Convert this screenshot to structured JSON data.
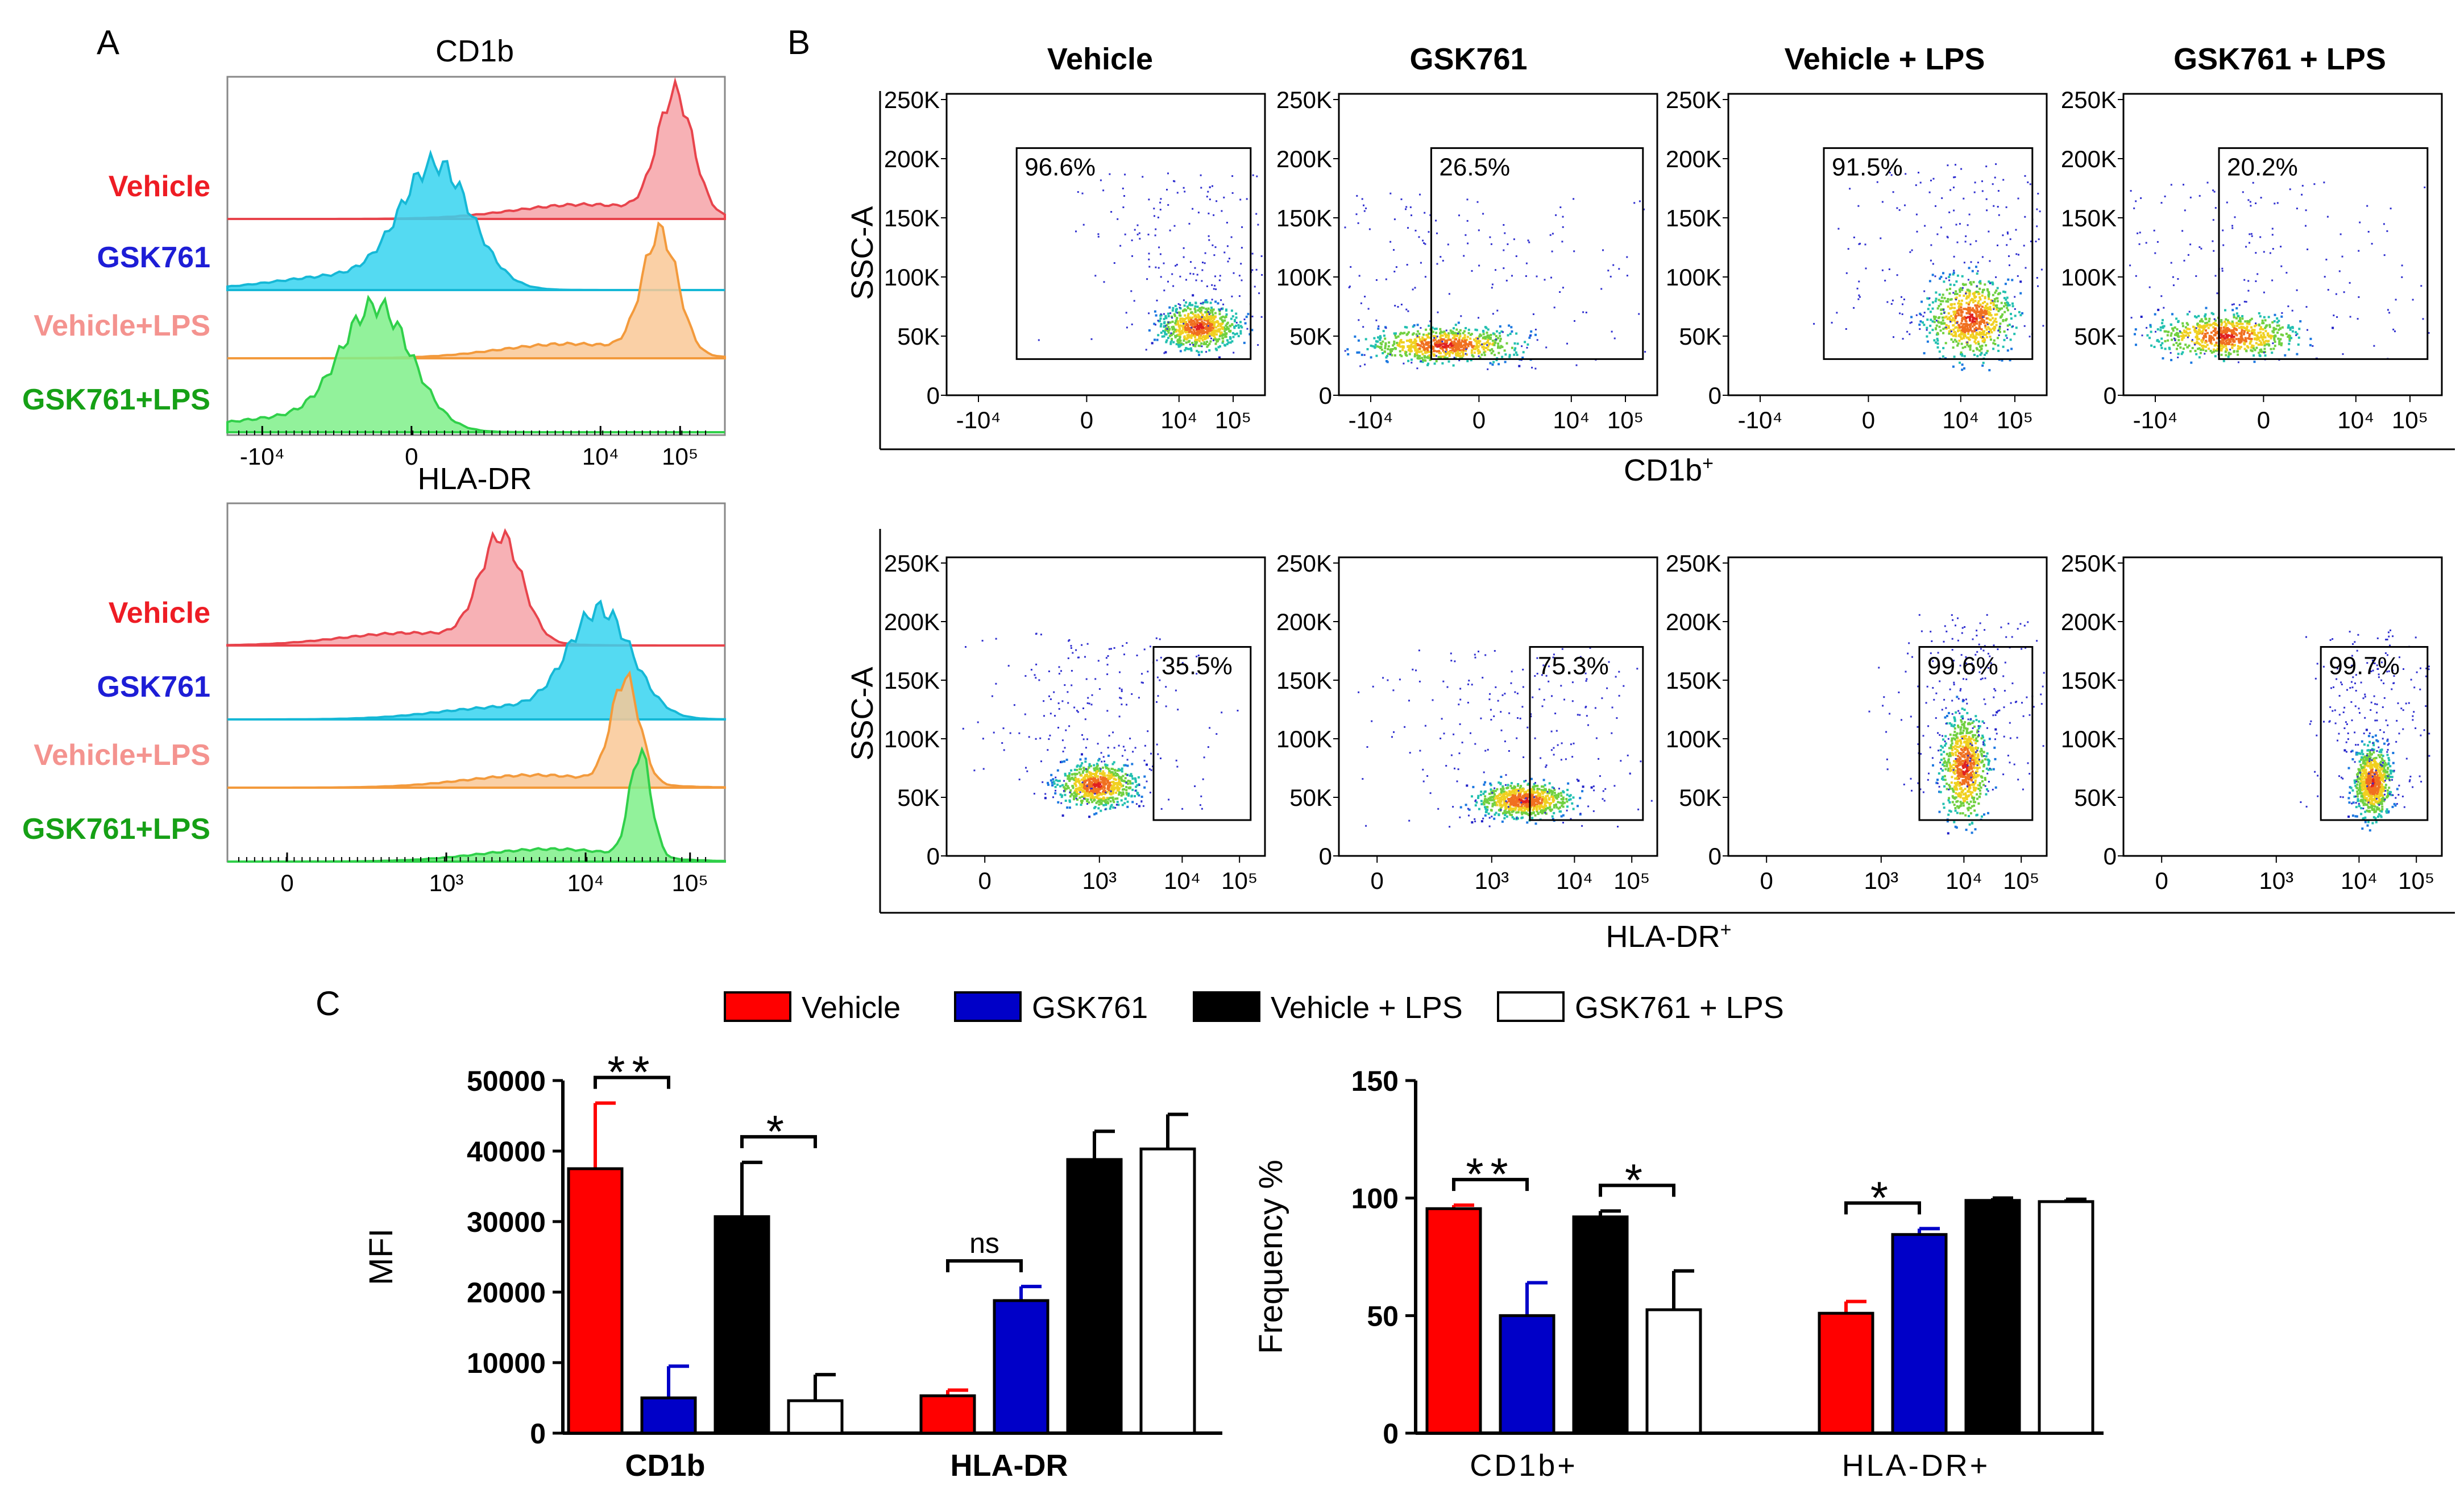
{
  "colors": {
    "vehicle": "#ee1c24",
    "gsk761": "#1d1dd6",
    "vehicle_lps_label": "#f4938f",
    "gsk761_lps": "#16a016",
    "hist_vehicle_fill": "#f6a3a8",
    "hist_vehicle_line": "#e8444c",
    "hist_gsk_fill": "#36d4f0",
    "hist_gsk_line": "#16b8d6",
    "hist_vlps_fill": "#f9c896",
    "hist_vlps_line": "#f39a3c",
    "hist_glps_fill": "#7ff08a",
    "hist_glps_line": "#30d04a",
    "bar_vehicle": "#ff0000",
    "bar_gsk": "#0000c8",
    "bar_vlps": "#000000",
    "bar_glps": "#ffffff"
  },
  "panel_a": {
    "label": "A",
    "histograms": [
      {
        "title": "CD1b",
        "rows": [
          {
            "name": "Vehicle",
            "key": "vehicle",
            "peak_pos": 0.9,
            "width": 0.05
          },
          {
            "name": "GSK761",
            "key": "gsk761",
            "peak_pos": 0.42,
            "width": 0.1
          },
          {
            "name": "Vehicle+LPS",
            "key": "vehicle_lps",
            "peak_pos": 0.87,
            "width": 0.05
          },
          {
            "name": "GSK761+LPS",
            "key": "gsk761_lps",
            "peak_pos": 0.3,
            "width": 0.1
          }
        ],
        "ticks": [
          "-10⁴",
          "0",
          "10⁴",
          "10⁵"
        ]
      },
      {
        "title": "HLA-DR",
        "rows": [
          {
            "name": "Vehicle",
            "key": "vehicle",
            "peak_pos": 0.55,
            "width": 0.06
          },
          {
            "name": "GSK761",
            "key": "gsk761",
            "peak_pos": 0.75,
            "width": 0.09
          },
          {
            "name": "Vehicle+LPS",
            "key": "vehicle_lps",
            "peak_pos": 0.8,
            "width": 0.04
          },
          {
            "name": "GSK761+LPS",
            "key": "gsk761_lps",
            "peak_pos": 0.83,
            "width": 0.03
          }
        ],
        "ticks": [
          "0",
          "10³",
          "10⁴",
          "10⁵"
        ]
      }
    ]
  },
  "panel_b": {
    "label": "B",
    "column_titles": [
      "Vehicle",
      "GSK761",
      "Vehicle + LPS",
      "GSK761 + LPS"
    ],
    "y_label": "SSC-A",
    "y_ticks": [
      "250K",
      "200K",
      "150K",
      "100K",
      "50K",
      "0"
    ],
    "rows": [
      {
        "x_title": "CD1b",
        "x_title_sup": "+",
        "x_ticks": [
          "-10⁴",
          "0",
          "10⁴",
          "10⁵"
        ],
        "percentages": [
          "96.6%",
          "26.5%",
          "91.5%",
          "20.2%"
        ]
      },
      {
        "x_title": "HLA-DR",
        "x_title_sup": "+",
        "x_ticks": [
          "0",
          "10³",
          "10⁴",
          "10⁵"
        ],
        "percentages": [
          "35.5%",
          "75.3%",
          "99.6%",
          "99.7%"
        ]
      }
    ]
  },
  "panel_c": {
    "label": "C",
    "legend": [
      "Vehicle",
      "GSK761",
      "Vehicle + LPS",
      "GSK761 + LPS"
    ]
  },
  "chart_data": [
    {
      "type": "bar",
      "title": "",
      "ylabel": "MFI",
      "xlabel": "",
      "ylim": [
        0,
        50000
      ],
      "y_ticks": [
        "0",
        "10000",
        "20000",
        "30000",
        "40000",
        "50000"
      ],
      "categories": [
        "CD1b",
        "HLA-DR"
      ],
      "series": [
        {
          "name": "Vehicle",
          "values": [
            37500,
            5300
          ],
          "errors": [
            9300,
            800
          ]
        },
        {
          "name": "GSK761",
          "values": [
            5000,
            18800
          ],
          "errors": [
            4500,
            2000
          ]
        },
        {
          "name": "Vehicle + LPS",
          "values": [
            30700,
            38800
          ],
          "errors": [
            7700,
            4000
          ]
        },
        {
          "name": "GSK761 + LPS",
          "values": [
            4600,
            40300
          ],
          "errors": [
            3700,
            4900
          ]
        }
      ],
      "significance": [
        {
          "category": "CD1b",
          "from": "Vehicle",
          "to": "GSK761",
          "label": "**"
        },
        {
          "category": "CD1b",
          "from": "Vehicle + LPS",
          "to": "GSK761 + LPS",
          "label": "*"
        },
        {
          "category": "HLA-DR",
          "from": "Vehicle",
          "to": "GSK761",
          "label": "ns"
        }
      ]
    },
    {
      "type": "bar",
      "title": "",
      "ylabel": "Frequency %",
      "xlabel": "",
      "ylim": [
        0,
        150
      ],
      "y_ticks": [
        "0",
        "50",
        "100",
        "150"
      ],
      "categories": [
        "CD1b+",
        "HLA-DR+"
      ],
      "series": [
        {
          "name": "Vehicle",
          "values": [
            95.5,
            51
          ],
          "errors": [
            1.5,
            5
          ]
        },
        {
          "name": "GSK761",
          "values": [
            50,
            84.5
          ],
          "errors": [
            14,
            2.5
          ]
        },
        {
          "name": "Vehicle + LPS",
          "values": [
            92,
            99
          ],
          "errors": [
            2.5,
            1
          ]
        },
        {
          "name": "GSK761 + LPS",
          "values": [
            52.5,
            98.5
          ],
          "errors": [
            16.5,
            1
          ]
        }
      ],
      "significance": [
        {
          "category": "CD1b+",
          "from": "Vehicle",
          "to": "GSK761",
          "label": "**"
        },
        {
          "category": "CD1b+",
          "from": "Vehicle + LPS",
          "to": "GSK761 + LPS",
          "label": "*"
        },
        {
          "category": "HLA-DR+",
          "from": "Vehicle",
          "to": "GSK761",
          "label": "*"
        }
      ]
    }
  ]
}
